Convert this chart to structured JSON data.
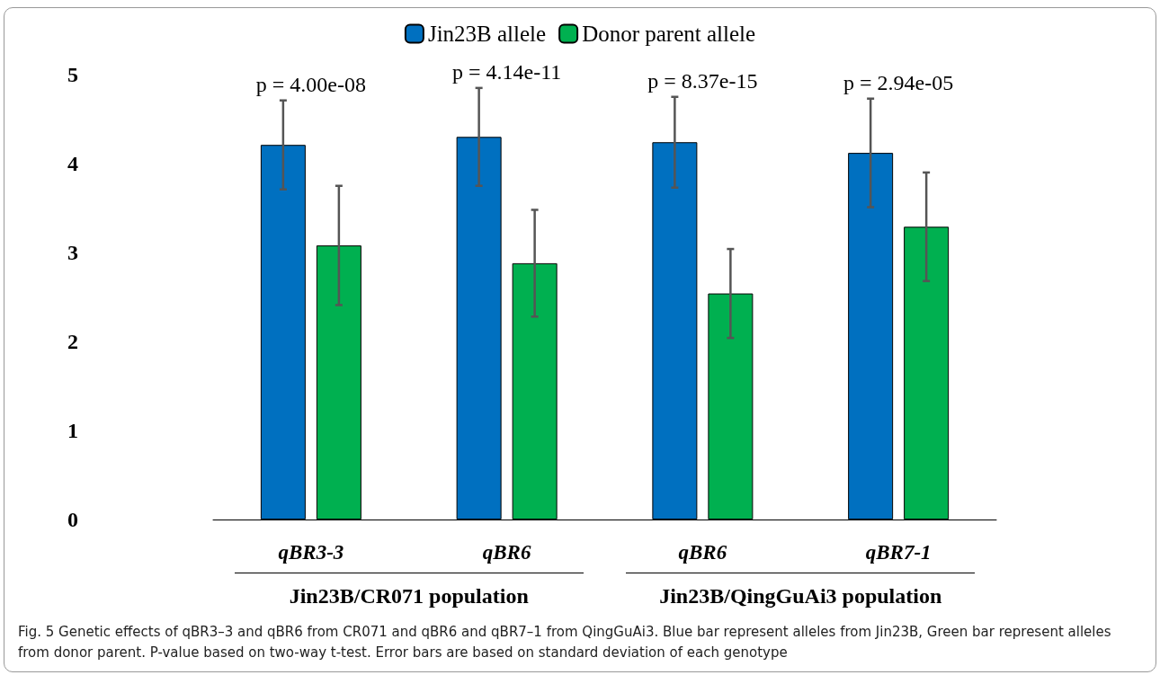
{
  "chart_data": {
    "type": "bar",
    "categories": [
      "qBR3-3",
      "qBR6",
      "qBR6",
      "qBR7-1"
    ],
    "series": [
      {
        "name": "Jin23B allele",
        "color": "#0070c0",
        "values": [
          4.21,
          4.3,
          4.24,
          4.12
        ],
        "errors": [
          0.5,
          0.55,
          0.51,
          0.61
        ]
      },
      {
        "name": "Donor parent allele",
        "color": "#00b050",
        "values": [
          3.08,
          2.88,
          2.54,
          3.29
        ],
        "errors": [
          0.67,
          0.6,
          0.5,
          0.61
        ]
      }
    ],
    "ylim": [
      0,
      5
    ],
    "yticks": [
      0,
      1,
      2,
      3,
      4,
      5
    ],
    "grid": false,
    "legend": "top",
    "annotations": [
      "p = 4.00e-08",
      "p = 4.14e-11",
      "p = 8.37e-15",
      "p = 2.94e-05",
      "Jin23B/CR071 population",
      "Jin23B/QingGuAi3 population",
      "Fig. 5 Genetic effects of qBR3–3 and qBR6 from CR071 and qBR6 and qBR7–1 from QingGuAi3. Blue bar represent alleles from Jin23B, Green bar represent alleles from donor parent. P-value based on two-way t-test. Error bars are based on standard deviation of each genotype"
    ]
  }
}
